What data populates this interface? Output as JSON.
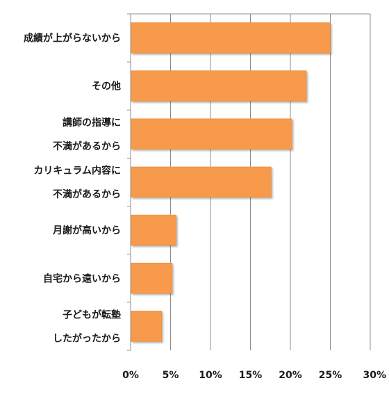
{
  "chart_data": {
    "type": "bar",
    "orientation": "horizontal",
    "categories": [
      [
        "成績が上がらないから"
      ],
      [
        "その他"
      ],
      [
        "講師の指導に",
        "不満があるから"
      ],
      [
        "カリキュラム内容に",
        "不満があるから"
      ],
      [
        "月謝が高いから"
      ],
      [
        "自宅から遠いから"
      ],
      [
        "子どもが転塾",
        "したがったから"
      ]
    ],
    "values": [
      25.0,
      22.0,
      20.2,
      17.6,
      5.7,
      5.2,
      3.9
    ],
    "unit": "%",
    "xlim": [
      0,
      30
    ],
    "xticks": [
      0,
      5,
      10,
      15,
      20,
      25,
      30
    ],
    "xtick_labels": [
      "0%",
      "5%",
      "10%",
      "15%",
      "20%",
      "25%",
      "30%"
    ],
    "title": "",
    "xlabel": "",
    "ylabel": "",
    "grid": true,
    "legend": "none",
    "colors": {
      "bar": "#f79a4b",
      "bar_edge": "#e07f2a",
      "grid": "#8c8c8c",
      "text": "#1a1a1a"
    }
  }
}
